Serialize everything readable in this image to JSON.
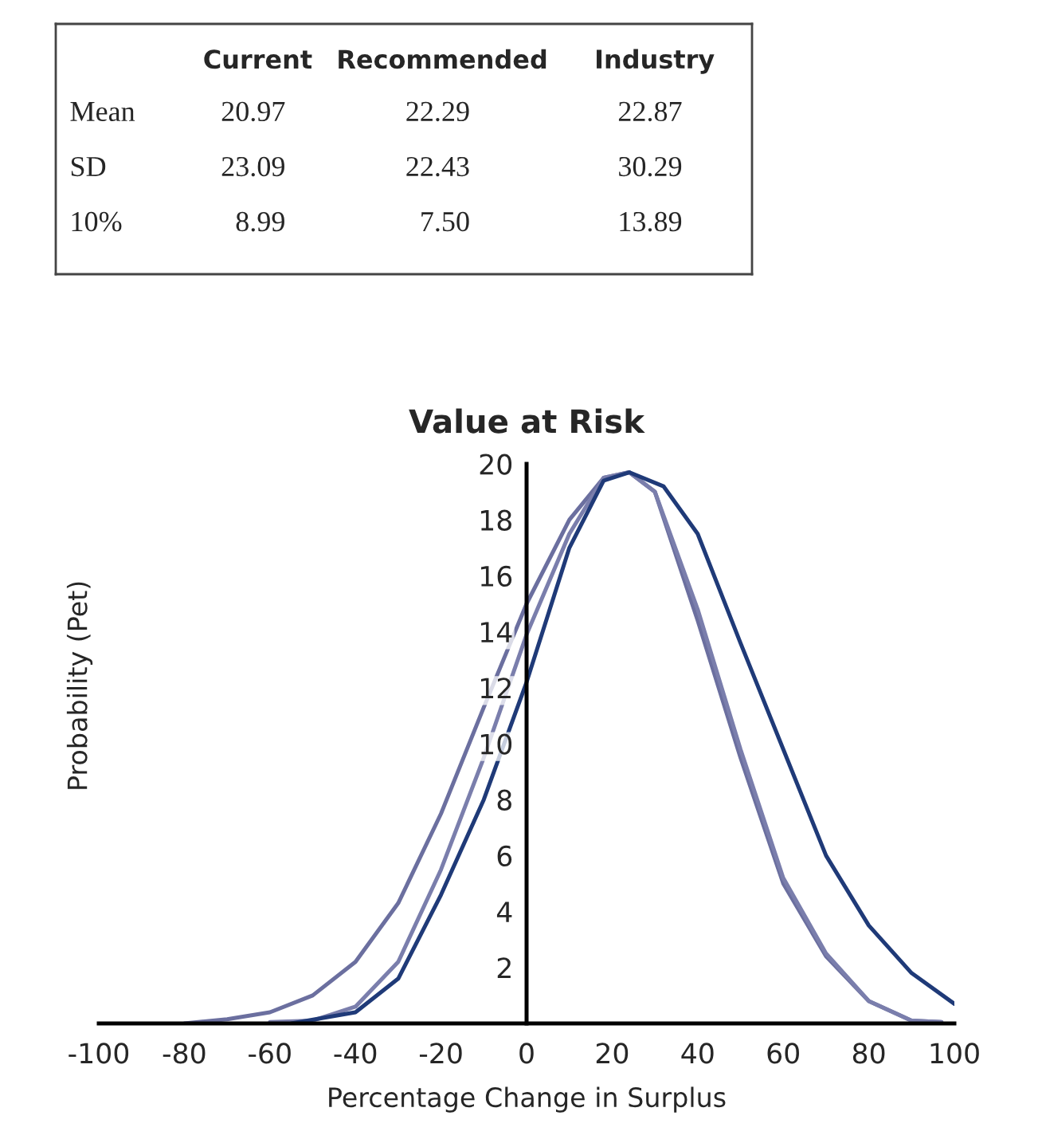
{
  "chart_data": [
    {
      "type": "other",
      "categories": [
        "Current",
        "Recommended",
        "Industry"
      ],
      "y_categories": [
        "Mean",
        "SD",
        "10%"
      ],
      "cell_labels": [
        [
          "20.97",
          "22.29",
          "22.87"
        ],
        [
          "23.09",
          "22.43",
          "30.29"
        ],
        [
          "8.99",
          "7.50",
          "13.89"
        ]
      ]
    },
    {
      "type": "line",
      "title": "Value at Risk",
      "xlabel": "Percentage Change in Surplus",
      "ylabel": "Probability (Pet)",
      "xlim": [
        -100,
        100
      ],
      "ylim": [
        0,
        20
      ],
      "xticks": [
        -100,
        -80,
        -60,
        -40,
        -20,
        0,
        20,
        40,
        60,
        80,
        100
      ],
      "yticks": [
        2,
        4,
        6,
        8,
        10,
        12,
        14,
        16,
        18,
        20
      ],
      "grid": false,
      "legend": false,
      "marker": "none",
      "line_style": "solid",
      "series": [
        {
          "color": "#6b6f9f",
          "x": [
            -80,
            -70,
            -60,
            -50,
            -40,
            -30,
            -20,
            -10,
            0,
            10,
            18,
            24,
            30,
            40,
            50,
            60,
            70,
            80,
            90,
            97
          ],
          "values": [
            0,
            0.15,
            0.4,
            1.0,
            2.2,
            4.3,
            7.5,
            11.3,
            15.0,
            18.0,
            19.5,
            19.7,
            19.0,
            14.4,
            9.5,
            5.0,
            2.4,
            0.8,
            0.1,
            0.05
          ]
        },
        {
          "color": "#7a7eac",
          "x": [
            -60,
            -50,
            -40,
            -30,
            -20,
            -10,
            0,
            10,
            18,
            24,
            30,
            40,
            50,
            60,
            70,
            80,
            90,
            97
          ],
          "values": [
            0.05,
            0.1,
            0.6,
            2.2,
            5.5,
            9.5,
            13.9,
            17.5,
            19.5,
            19.7,
            19.0,
            14.8,
            9.8,
            5.2,
            2.5,
            0.8,
            0.1,
            0.05
          ]
        },
        {
          "color": "#1f3a78",
          "x": [
            -55,
            -40,
            -30,
            -20,
            -10,
            0,
            10,
            18,
            24,
            32,
            40,
            50,
            60,
            70,
            80,
            90,
            100
          ],
          "values": [
            0,
            0.4,
            1.6,
            4.6,
            8.0,
            12.2,
            17.0,
            19.4,
            19.7,
            19.2,
            17.5,
            13.6,
            9.8,
            6.0,
            3.5,
            1.8,
            0.7
          ]
        }
      ]
    }
  ]
}
